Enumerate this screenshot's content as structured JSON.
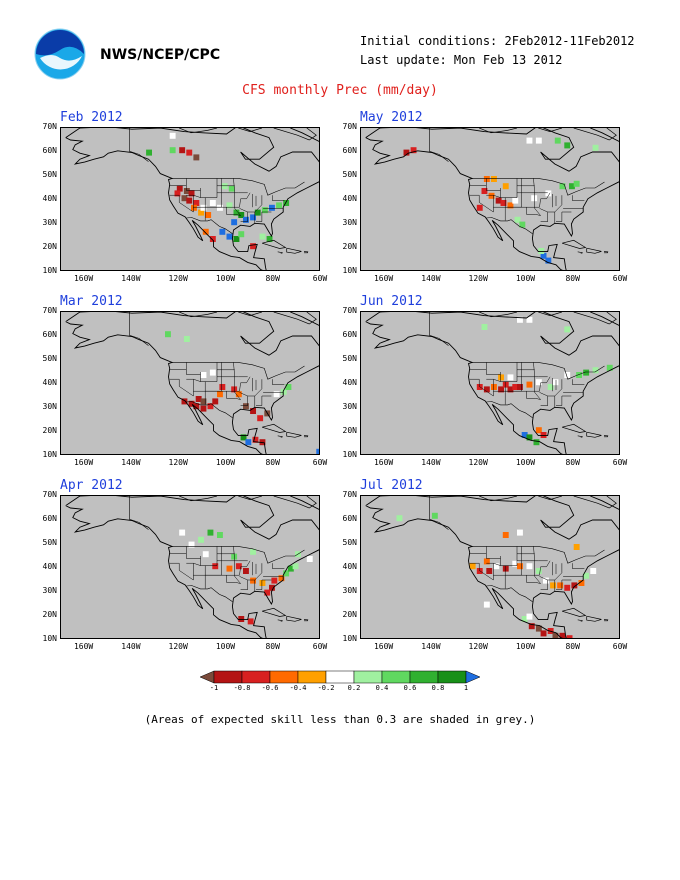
{
  "header": {
    "organization": "NWS/NCEP/CPC",
    "initial_conditions": "Initial conditions: 2Feb2012-11Feb2012",
    "last_update": "Last update: Mon Feb 13 2012",
    "title": "CFS monthly Prec (mm/day)"
  },
  "axes": {
    "lat_labels": [
      "70N",
      "60N",
      "50N",
      "40N",
      "30N",
      "20N",
      "10N"
    ],
    "lon_labels": [
      "160W",
      "140W",
      "120W",
      "100W",
      "80W",
      "60W"
    ]
  },
  "panels": [
    {
      "month": "Feb 2012"
    },
    {
      "month": "May 2012"
    },
    {
      "month": "Mar 2012"
    },
    {
      "month": "Jun 2012"
    },
    {
      "month": "Apr 2012"
    },
    {
      "month": "Jul 2012"
    }
  ],
  "colorbar": {
    "labels": [
      "-1",
      "-0.8",
      "-0.6",
      "-0.4",
      "-0.2",
      "0.2",
      "0.4",
      "0.6",
      "0.8",
      "1"
    ],
    "colors": [
      "#7a4a3a",
      "#b41414",
      "#d82020",
      "#ff6a00",
      "#ffa000",
      "#ffffff",
      "#a0f0a0",
      "#60d860",
      "#30b030",
      "#189018",
      "#1e6ee0"
    ]
  },
  "note": "(Areas of expected skill less than 0.3 are shaded in grey.)",
  "colors": {
    "map_background": "#c0c0c0",
    "title": "#e0201c",
    "panel_title": "#1f3fdc"
  }
}
